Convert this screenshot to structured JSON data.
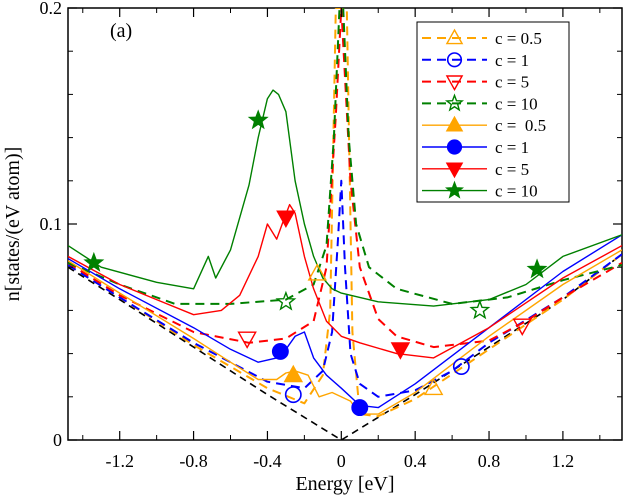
{
  "chart_data": {
    "type": "line",
    "panel_label": "(a)",
    "xlabel": "Energy [eV]",
    "ylabel": "n[states/(eV atom)]",
    "xlim": [
      -1.48,
      1.52
    ],
    "ylim": [
      0,
      0.2
    ],
    "x_ticks": [
      -1.2,
      -0.8,
      -0.4,
      0,
      0.4,
      0.8,
      1.2
    ],
    "x_tick_labels": [
      "-1.2",
      "-0.8",
      "-0.4",
      "0",
      "0.4",
      "0.8",
      "1.2"
    ],
    "y_ticks": [
      0,
      0.1,
      0.2
    ],
    "y_tick_labels": [
      "0",
      "0.1",
      "0.2"
    ],
    "legend_position": "top-right",
    "reference_curve": {
      "name": "clean",
      "color": "#000000",
      "dash": true,
      "x": [
        -1.48,
        -1.2,
        -0.8,
        -0.4,
        0,
        0.4,
        0.8,
        1.2,
        1.52
      ],
      "y": [
        0.08,
        0.065,
        0.043,
        0.021,
        0.0,
        0.021,
        0.043,
        0.065,
        0.086
      ]
    },
    "series": [
      {
        "name": "c = 0.5",
        "legend": "c = 0.5",
        "color": "#FFA500",
        "dash": true,
        "marker": "triangle-up",
        "filled": false,
        "x": [
          -1.48,
          -1.2,
          -0.8,
          -0.4,
          -0.2,
          -0.1,
          -0.06,
          -0.03,
          0.0,
          0.03,
          0.06,
          0.1,
          0.2,
          0.4,
          0.8,
          1.2,
          1.52
        ],
        "y": [
          0.081,
          0.066,
          0.044,
          0.024,
          0.017,
          0.03,
          0.06,
          0.2,
          0.2,
          0.2,
          0.05,
          0.012,
          0.011,
          0.019,
          0.042,
          0.065,
          0.086
        ],
        "marker_points": [
          [
            -0.13,
            0.077
          ],
          [
            0.5,
            0.024
          ]
        ]
      },
      {
        "name": "c = 1",
        "legend": "c = 1",
        "color": "#0000FF",
        "dash": true,
        "marker": "circle",
        "filled": false,
        "x": [
          -1.48,
          -1.2,
          -0.8,
          -0.4,
          -0.2,
          -0.1,
          -0.05,
          -0.02,
          0.0,
          0.02,
          0.05,
          0.1,
          0.2,
          0.4,
          0.6,
          0.8,
          1.2,
          1.52
        ],
        "y": [
          0.081,
          0.066,
          0.045,
          0.027,
          0.024,
          0.032,
          0.05,
          0.09,
          0.12,
          0.08,
          0.04,
          0.026,
          0.02,
          0.023,
          0.032,
          0.045,
          0.066,
          0.086
        ],
        "marker_points": [
          [
            -0.26,
            0.021
          ],
          [
            0.65,
            0.034
          ]
        ]
      },
      {
        "name": "c = 5",
        "legend": "c = 5",
        "color": "#FF0000",
        "dash": true,
        "marker": "triangle-down",
        "filled": false,
        "x": [
          -1.48,
          -1.2,
          -0.8,
          -0.5,
          -0.3,
          -0.15,
          -0.08,
          -0.03,
          0.0,
          0.05,
          0.1,
          0.2,
          0.3,
          0.5,
          0.8,
          1.0,
          1.2,
          1.52
        ],
        "y": [
          0.082,
          0.067,
          0.05,
          0.045,
          0.047,
          0.055,
          0.08,
          0.15,
          0.2,
          0.12,
          0.08,
          0.056,
          0.048,
          0.043,
          0.046,
          0.055,
          0.066,
          0.082
        ],
        "marker_points": [
          [
            -0.51,
            0.047
          ],
          [
            0.98,
            0.053
          ]
        ]
      },
      {
        "name": "c = 10",
        "legend": "c = 10",
        "color": "#008000",
        "dash": true,
        "marker": "star",
        "filled": false,
        "x": [
          -1.48,
          -1.2,
          -0.9,
          -0.6,
          -0.3,
          -0.15,
          -0.08,
          -0.04,
          -0.01,
          0.01,
          0.04,
          0.08,
          0.15,
          0.3,
          0.6,
          0.9,
          1.2,
          1.52
        ],
        "y": [
          0.082,
          0.072,
          0.063,
          0.063,
          0.065,
          0.072,
          0.09,
          0.14,
          0.2,
          0.2,
          0.14,
          0.1,
          0.08,
          0.07,
          0.063,
          0.066,
          0.074,
          0.081
        ],
        "marker_points": [
          [
            -0.3,
            0.064
          ],
          [
            0.75,
            0.06
          ]
        ]
      },
      {
        "name": "c =  0.5",
        "legend": "c =  0.5",
        "color": "#FFA500",
        "dash": false,
        "marker": "triangle-up",
        "filled": true,
        "x": [
          -1.48,
          -1.2,
          -0.8,
          -0.6,
          -0.45,
          -0.35,
          -0.3,
          -0.25,
          -0.18,
          -0.12,
          -0.05,
          0.05,
          0.1,
          0.2,
          0.4,
          0.8,
          1.2,
          1.52
        ],
        "y": [
          0.083,
          0.068,
          0.047,
          0.036,
          0.028,
          0.028,
          0.031,
          0.032,
          0.03,
          0.02,
          0.022,
          0.018,
          0.012,
          0.012,
          0.022,
          0.048,
          0.072,
          0.088
        ],
        "marker_points": [
          [
            -0.26,
            0.03
          ]
        ]
      },
      {
        "name": "c = 1",
        "legend": "c = 1",
        "color": "#0000FF",
        "dash": false,
        "marker": "circle",
        "filled": true,
        "x": [
          -1.48,
          -1.2,
          -0.8,
          -0.6,
          -0.45,
          -0.35,
          -0.3,
          -0.25,
          -0.2,
          -0.15,
          -0.08,
          0.0,
          0.1,
          0.2,
          0.4,
          0.8,
          1.2,
          1.52
        ],
        "y": [
          0.084,
          0.07,
          0.052,
          0.042,
          0.036,
          0.038,
          0.042,
          0.048,
          0.05,
          0.038,
          0.03,
          0.024,
          0.016,
          0.015,
          0.026,
          0.052,
          0.078,
          0.095
        ],
        "marker_points": [
          [
            -0.33,
            0.041
          ],
          [
            0.1,
            0.015
          ]
        ]
      },
      {
        "name": "c = 5",
        "legend": "c = 5",
        "color": "#FF0000",
        "dash": false,
        "marker": "triangle-down",
        "filled": true,
        "x": [
          -1.48,
          -1.2,
          -1.0,
          -0.8,
          -0.65,
          -0.55,
          -0.45,
          -0.4,
          -0.35,
          -0.32,
          -0.28,
          -0.25,
          -0.2,
          -0.15,
          -0.08,
          0.0,
          0.1,
          0.3,
          0.5,
          0.8,
          1.2,
          1.52
        ],
        "y": [
          0.085,
          0.072,
          0.065,
          0.058,
          0.06,
          0.067,
          0.085,
          0.1,
          0.093,
          0.1,
          0.109,
          0.105,
          0.085,
          0.07,
          0.055,
          0.048,
          0.045,
          0.04,
          0.038,
          0.052,
          0.075,
          0.09
        ],
        "marker_points": [
          [
            -0.3,
            0.103
          ],
          [
            0.32,
            0.042
          ]
        ]
      },
      {
        "name": "c = 10",
        "legend": "c = 10",
        "color": "#008000",
        "dash": false,
        "marker": "star",
        "filled": true,
        "x": [
          -1.48,
          -1.3,
          -1.0,
          -0.8,
          -0.72,
          -0.68,
          -0.6,
          -0.5,
          -0.45,
          -0.4,
          -0.37,
          -0.34,
          -0.3,
          -0.25,
          -0.2,
          -0.15,
          -0.1,
          -0.05,
          0.0,
          0.2,
          0.5,
          0.8,
          1.0,
          1.2,
          1.52
        ],
        "y": [
          0.09,
          0.08,
          0.073,
          0.07,
          0.085,
          0.075,
          0.088,
          0.118,
          0.14,
          0.158,
          0.162,
          0.16,
          0.152,
          0.12,
          0.1,
          0.085,
          0.075,
          0.07,
          0.068,
          0.064,
          0.062,
          0.065,
          0.072,
          0.085,
          0.095
        ],
        "marker_points": [
          [
            -0.45,
            0.148
          ],
          [
            -1.34,
            0.082
          ],
          [
            1.06,
            0.079
          ]
        ]
      }
    ]
  }
}
